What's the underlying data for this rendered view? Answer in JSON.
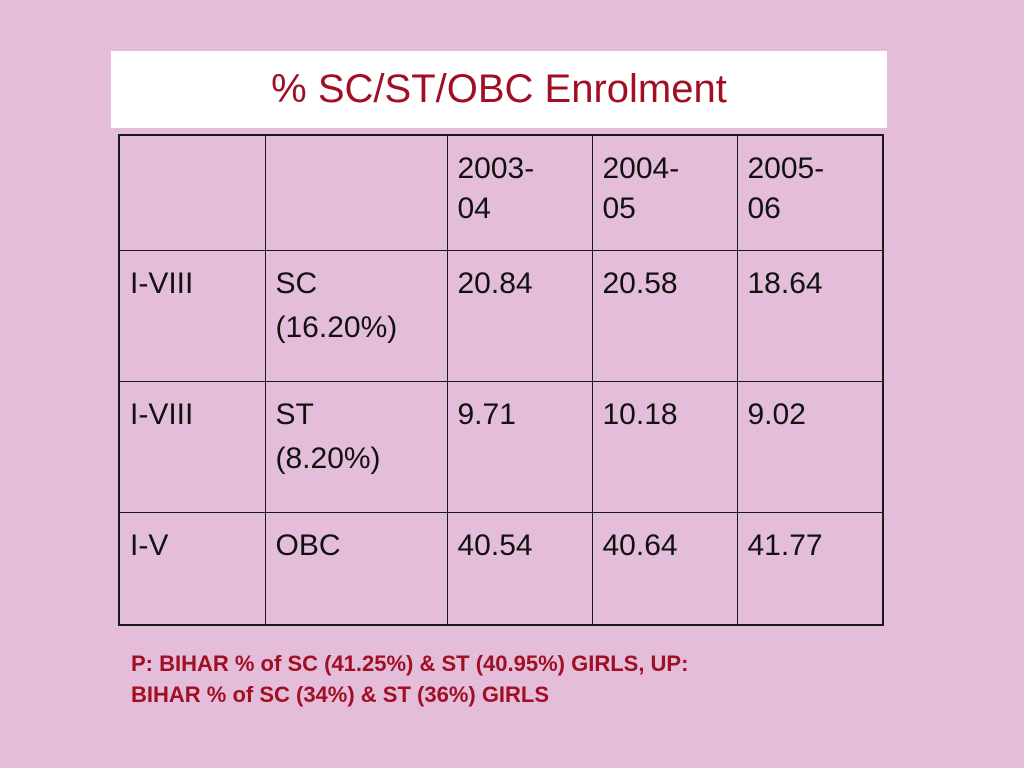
{
  "slide": {
    "title": "% SC/ST/OBC Enrolment",
    "note_line1": "P: BIHAR % of SC (41.25%) & ST (40.95%) GIRLS, UP:",
    "note_line2": "BIHAR % of SC (34%) & ST (36%) GIRLS"
  },
  "table": {
    "header": [
      "",
      "",
      "2003-04",
      "2004-05",
      "2005-06"
    ],
    "header_lines": [
      [
        "",
        ""
      ],
      [
        "",
        ""
      ],
      [
        "2003-",
        "04"
      ],
      [
        "2004-",
        "05"
      ],
      [
        "2005-",
        "06"
      ]
    ],
    "rows": [
      {
        "level": "I-VIII",
        "category": "SC",
        "category_share": "(16.20%)",
        "values": [
          "20.84",
          "20.58",
          "18.64"
        ]
      },
      {
        "level": "I-VIII",
        "category": "ST",
        "category_share": "(8.20%)",
        "values": [
          "9.71",
          "10.18",
          "9.02"
        ]
      },
      {
        "level": "I-V",
        "category": "OBC",
        "category_share": "",
        "values": [
          "40.54",
          "40.64",
          "41.77"
        ]
      }
    ]
  },
  "colors": {
    "background": "#e3bdd9",
    "title_text": "#a10f24",
    "note_text": "#a10f24",
    "table_text": "#111111",
    "border": "#1a1a1a"
  }
}
